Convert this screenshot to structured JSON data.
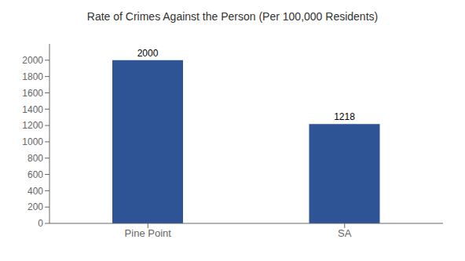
{
  "chart_data": {
    "type": "bar",
    "title": "Rate of Crimes Against the Person (Per 100,000 Residents)",
    "categories": [
      "Pine Point",
      "SA"
    ],
    "values": [
      2000,
      1218
    ],
    "color": "#2e5496",
    "ylim": [
      0,
      2200
    ],
    "yticks": [
      0,
      200,
      400,
      600,
      800,
      1000,
      1200,
      1400,
      1600,
      1800,
      2000
    ],
    "grid": false,
    "data_labels": true
  }
}
